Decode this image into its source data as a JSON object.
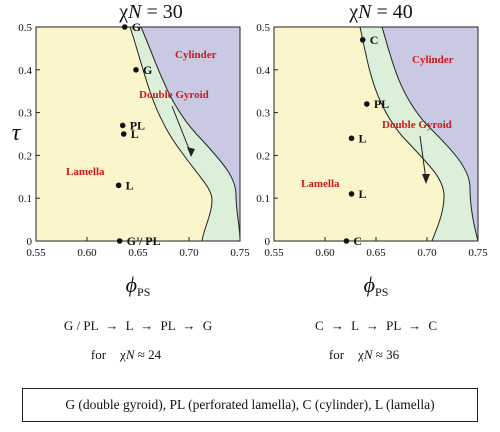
{
  "ylabel": "τ",
  "xlabel_main": "ϕ",
  "xlabel_sub": "PS",
  "colors": {
    "lamella": "#fbf5cc",
    "gyroid": "#dcefd9",
    "cylinder": "#c9c9e4",
    "label": "#d01818"
  },
  "panels": [
    {
      "title_prefix": "χ",
      "title_N": "N",
      "title_value": " = 30",
      "regions": {
        "cylinder": "Cylinder",
        "gyroid": "Double Gyroid",
        "lamella": "Lamella"
      },
      "x_ticks": [
        "0.55",
        "0.60",
        "0.65",
        "0.70",
        "0.75"
      ],
      "y_ticks": [
        "0",
        "0.1",
        "0.2",
        "0.3",
        "0.4",
        "0.5"
      ],
      "points": [
        {
          "phi": 0.637,
          "tau": 0.5,
          "label": "G"
        },
        {
          "phi": 0.648,
          "tau": 0.4,
          "label": "G"
        },
        {
          "phi": 0.635,
          "tau": 0.27,
          "label": "PL"
        },
        {
          "phi": 0.636,
          "tau": 0.25,
          "label": "L"
        },
        {
          "phi": 0.631,
          "tau": 0.13,
          "label": "L"
        },
        {
          "phi": 0.632,
          "tau": 0.0,
          "label": "G / PL"
        }
      ],
      "sequence": [
        "G / PL",
        "→",
        "L",
        "→",
        "PL",
        "→",
        "G"
      ],
      "for_text": "for",
      "for_chi": "χ",
      "for_N": "N",
      "for_value": " ≈ 24"
    },
    {
      "title_prefix": "χ",
      "title_N": "N",
      "title_value": " = 40",
      "regions": {
        "cylinder": "Cylinder",
        "gyroid": "Double Gyroid",
        "lamella": "Lamella"
      },
      "x_ticks": [
        "0.55",
        "0.60",
        "0.65",
        "0.70",
        "0.75"
      ],
      "y_ticks": [
        "0",
        "0.1",
        "0.2",
        "0.3",
        "0.4",
        "0.5"
      ],
      "points": [
        {
          "phi": 0.637,
          "tau": 0.47,
          "label": "C"
        },
        {
          "phi": 0.641,
          "tau": 0.32,
          "label": "PL"
        },
        {
          "phi": 0.626,
          "tau": 0.24,
          "label": "L"
        },
        {
          "phi": 0.626,
          "tau": 0.11,
          "label": "L"
        },
        {
          "phi": 0.621,
          "tau": 0.0,
          "label": "C"
        }
      ],
      "sequence": [
        "C",
        "→",
        "L",
        "→",
        "PL",
        "→",
        "C"
      ],
      "for_text": "for",
      "for_chi": "χ",
      "for_N": "N",
      "for_value": " ≈ 36"
    }
  ],
  "legend": "G (double gyroid), PL (perforated lamella), C (cylinder), L (lamella)"
}
